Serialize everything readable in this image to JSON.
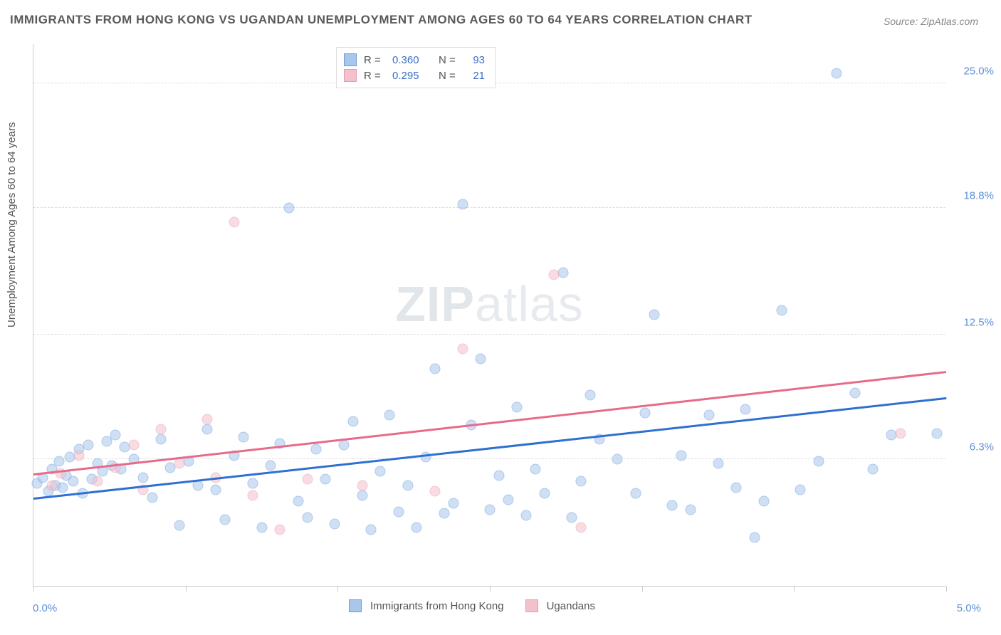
{
  "title": "IMMIGRANTS FROM HONG KONG VS UGANDAN UNEMPLOYMENT AMONG AGES 60 TO 64 YEARS CORRELATION CHART",
  "source": "Source: ZipAtlas.com",
  "y_axis_label": "Unemployment Among Ages 60 to 64 years",
  "watermark_bold": "ZIP",
  "watermark_thin": "atlas",
  "chart": {
    "type": "scatter",
    "xlim": [
      0.0,
      5.0
    ],
    "ylim": [
      0.0,
      27.0
    ],
    "x_tick_positions": [
      0.0,
      0.833,
      1.667,
      2.5,
      3.333,
      4.167,
      5.0
    ],
    "y_ticks": [
      {
        "value": 6.3,
        "label": "6.3%"
      },
      {
        "value": 12.5,
        "label": "12.5%"
      },
      {
        "value": 18.8,
        "label": "18.8%"
      },
      {
        "value": 25.0,
        "label": "25.0%"
      }
    ],
    "xlim_labels": {
      "left": "0.0%",
      "right": "5.0%"
    },
    "background_color": "#ffffff",
    "grid_color": "#dddddd",
    "marker_radius": 7.5,
    "marker_opacity": 0.55,
    "series": [
      {
        "name": "Immigrants from Hong Kong",
        "color_fill": "#a9c7ec",
        "color_stroke": "#6a9bd8",
        "line_color": "#2f6fd0",
        "R": "0.360",
        "N": "93",
        "trend": {
          "x1": 0.0,
          "y1": 4.3,
          "x2": 5.0,
          "y2": 9.3
        },
        "points": [
          [
            0.02,
            5.1
          ],
          [
            0.05,
            5.4
          ],
          [
            0.08,
            4.7
          ],
          [
            0.1,
            5.8
          ],
          [
            0.12,
            5.0
          ],
          [
            0.14,
            6.2
          ],
          [
            0.16,
            4.9
          ],
          [
            0.18,
            5.5
          ],
          [
            0.2,
            6.4
          ],
          [
            0.22,
            5.2
          ],
          [
            0.25,
            6.8
          ],
          [
            0.27,
            4.6
          ],
          [
            0.3,
            7.0
          ],
          [
            0.32,
            5.3
          ],
          [
            0.35,
            6.1
          ],
          [
            0.38,
            5.7
          ],
          [
            0.4,
            7.2
          ],
          [
            0.43,
            6.0
          ],
          [
            0.45,
            7.5
          ],
          [
            0.48,
            5.8
          ],
          [
            0.5,
            6.9
          ],
          [
            0.55,
            6.3
          ],
          [
            0.6,
            5.4
          ],
          [
            0.65,
            4.4
          ],
          [
            0.7,
            7.3
          ],
          [
            0.75,
            5.9
          ],
          [
            0.8,
            3.0
          ],
          [
            0.85,
            6.2
          ],
          [
            0.9,
            5.0
          ],
          [
            0.95,
            7.8
          ],
          [
            1.0,
            4.8
          ],
          [
            1.05,
            3.3
          ],
          [
            1.1,
            6.5
          ],
          [
            1.15,
            7.4
          ],
          [
            1.2,
            5.1
          ],
          [
            1.25,
            2.9
          ],
          [
            1.3,
            6.0
          ],
          [
            1.35,
            7.1
          ],
          [
            1.4,
            18.8
          ],
          [
            1.45,
            4.2
          ],
          [
            1.5,
            3.4
          ],
          [
            1.55,
            6.8
          ],
          [
            1.6,
            5.3
          ],
          [
            1.65,
            3.1
          ],
          [
            1.7,
            7.0
          ],
          [
            1.75,
            8.2
          ],
          [
            1.8,
            4.5
          ],
          [
            1.85,
            2.8
          ],
          [
            1.9,
            5.7
          ],
          [
            1.95,
            8.5
          ],
          [
            2.0,
            3.7
          ],
          [
            2.05,
            5.0
          ],
          [
            2.1,
            2.9
          ],
          [
            2.15,
            6.4
          ],
          [
            2.2,
            10.8
          ],
          [
            2.25,
            3.6
          ],
          [
            2.3,
            4.1
          ],
          [
            2.35,
            19.0
          ],
          [
            2.4,
            8.0
          ],
          [
            2.45,
            11.3
          ],
          [
            2.5,
            3.8
          ],
          [
            2.55,
            5.5
          ],
          [
            2.6,
            4.3
          ],
          [
            2.65,
            8.9
          ],
          [
            2.7,
            3.5
          ],
          [
            2.75,
            5.8
          ],
          [
            2.8,
            4.6
          ],
          [
            2.9,
            15.6
          ],
          [
            2.95,
            3.4
          ],
          [
            3.0,
            5.2
          ],
          [
            3.05,
            9.5
          ],
          [
            3.1,
            7.3
          ],
          [
            3.2,
            6.3
          ],
          [
            3.3,
            4.6
          ],
          [
            3.35,
            8.6
          ],
          [
            3.4,
            13.5
          ],
          [
            3.5,
            4.0
          ],
          [
            3.55,
            6.5
          ],
          [
            3.6,
            3.8
          ],
          [
            3.7,
            8.5
          ],
          [
            3.75,
            6.1
          ],
          [
            3.85,
            4.9
          ],
          [
            3.9,
            8.8
          ],
          [
            3.95,
            2.4
          ],
          [
            4.0,
            4.2
          ],
          [
            4.1,
            13.7
          ],
          [
            4.2,
            4.8
          ],
          [
            4.3,
            6.2
          ],
          [
            4.4,
            25.5
          ],
          [
            4.5,
            9.6
          ],
          [
            4.6,
            5.8
          ],
          [
            4.7,
            7.5
          ],
          [
            4.95,
            7.6
          ]
        ]
      },
      {
        "name": "Ugandans",
        "color_fill": "#f4c0cc",
        "color_stroke": "#e89aaf",
        "line_color": "#e86a8a",
        "R": "0.295",
        "N": "21",
        "trend": {
          "x1": 0.0,
          "y1": 5.5,
          "x2": 5.0,
          "y2": 10.6
        },
        "points": [
          [
            0.1,
            5.0
          ],
          [
            0.15,
            5.6
          ],
          [
            0.25,
            6.5
          ],
          [
            0.35,
            5.2
          ],
          [
            0.45,
            5.9
          ],
          [
            0.55,
            7.0
          ],
          [
            0.6,
            4.8
          ],
          [
            0.7,
            7.8
          ],
          [
            0.8,
            6.1
          ],
          [
            0.95,
            8.3
          ],
          [
            1.0,
            5.4
          ],
          [
            1.1,
            18.1
          ],
          [
            1.2,
            4.5
          ],
          [
            1.35,
            2.8
          ],
          [
            1.5,
            5.3
          ],
          [
            1.8,
            5.0
          ],
          [
            2.2,
            4.7
          ],
          [
            2.35,
            11.8
          ],
          [
            2.85,
            15.5
          ],
          [
            3.0,
            2.9
          ],
          [
            4.75,
            7.6
          ]
        ]
      }
    ]
  },
  "legend_bottom": [
    {
      "label": "Immigrants from Hong Kong",
      "fill": "#a9c7ec",
      "stroke": "#6a9bd8"
    },
    {
      "label": "Ugandans",
      "fill": "#f4c0cc",
      "stroke": "#e89aaf"
    }
  ]
}
